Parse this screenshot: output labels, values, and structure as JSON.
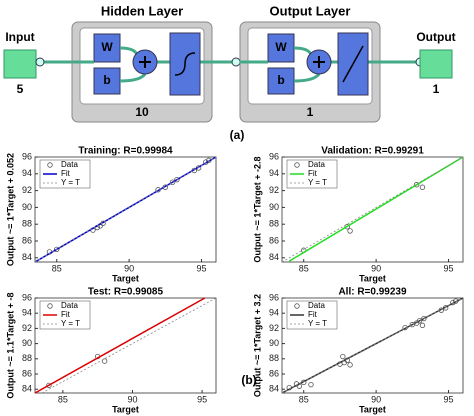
{
  "diagram": {
    "input": {
      "label": "Input",
      "size": "5"
    },
    "hidden": {
      "title": "Hidden Layer",
      "w": "W",
      "b": "b",
      "size": "10"
    },
    "output_layer": {
      "title": "Output Layer",
      "w": "W",
      "b": "b",
      "size": "1"
    },
    "output": {
      "label": "Output",
      "size": "1"
    },
    "caption": "(a)"
  },
  "caption_b": "(b)",
  "chart_data": [
    {
      "type": "scatter",
      "title": "Training: R=0.99984",
      "xlabel": "Target",
      "ylabel": "Output ~= 1*Target + 0.052",
      "xlim": [
        83.5,
        96
      ],
      "ylim": [
        83.5,
        96
      ],
      "xticks": [
        85,
        90,
        95
      ],
      "yticks": [
        84,
        86,
        88,
        90,
        92,
        94,
        96
      ],
      "legend": "upper left",
      "series": [
        {
          "name": "Data",
          "color": "#555555",
          "x": [
            84.5,
            85,
            87.5,
            87.8,
            88,
            88.2,
            92,
            92.5,
            93,
            93.3,
            94.5,
            94.8,
            95.3,
            95.5
          ],
          "values": [
            84.7,
            85,
            87.3,
            87.6,
            87.8,
            88.1,
            92.1,
            92.4,
            93,
            93.3,
            94.4,
            94.7,
            95.4,
            95.6
          ]
        },
        {
          "name": "Fit",
          "color": "#0000cc",
          "x": [
            83.5,
            96
          ],
          "values": [
            83.5,
            96
          ]
        },
        {
          "name": "Y = T",
          "color": "#888888",
          "x": [
            83.5,
            96
          ],
          "values": [
            83.5,
            96
          ]
        }
      ]
    },
    {
      "type": "scatter",
      "title": "Validation: R=0.99291",
      "xlabel": "Target",
      "ylabel": "Output ~= 1*Target + -2.8",
      "xlim": [
        83.5,
        96
      ],
      "ylim": [
        83.5,
        96
      ],
      "xticks": [
        85,
        90,
        95
      ],
      "yticks": [
        84,
        86,
        88,
        90,
        92,
        94,
        96
      ],
      "legend": "upper left",
      "series": [
        {
          "name": "Data",
          "color": "#555555",
          "x": [
            85,
            88,
            88.2,
            92.8,
            93.2
          ],
          "values": [
            84.9,
            87.7,
            87.2,
            92.7,
            92.4
          ]
        },
        {
          "name": "Fit",
          "color": "#22dd22",
          "x": [
            84,
            96
          ],
          "values": [
            83.6,
            96
          ]
        },
        {
          "name": "Y = T",
          "color": "#888888",
          "x": [
            83.5,
            96
          ],
          "values": [
            83.5,
            96
          ]
        }
      ]
    },
    {
      "type": "scatter",
      "title": "Test: R=0.99085",
      "xlabel": "Target",
      "ylabel": "Output ~= 1.1*Target + -8",
      "xlim": [
        83,
        96
      ],
      "ylim": [
        83.5,
        96
      ],
      "xticks": [
        85,
        90,
        95
      ],
      "yticks": [
        84,
        86,
        88,
        90,
        92,
        94,
        96
      ],
      "legend": "upper left",
      "series": [
        {
          "name": "Data",
          "color": "#555555",
          "x": [
            84,
            87.5,
            88
          ],
          "values": [
            84.5,
            88.3,
            87.7
          ]
        },
        {
          "name": "Fit",
          "color": "#dd0000",
          "x": [
            83,
            95.2
          ],
          "values": [
            83.5,
            96
          ]
        },
        {
          "name": "Y = T",
          "color": "#888888",
          "x": [
            83.5,
            96
          ],
          "values": [
            83.5,
            96
          ]
        }
      ]
    },
    {
      "type": "scatter",
      "title": "All: R=0.99239",
      "xlabel": "Target",
      "ylabel": "Output ~= 1*Target + 3.2",
      "xlim": [
        83.5,
        96
      ],
      "ylim": [
        83.5,
        96
      ],
      "xticks": [
        85,
        90,
        95
      ],
      "yticks": [
        84,
        86,
        88,
        90,
        92,
        94,
        96
      ],
      "legend": "upper left",
      "series": [
        {
          "name": "Data",
          "color": "#555555",
          "x": [
            84,
            84.5,
            84.7,
            85,
            85.5,
            87.5,
            87.7,
            87.8,
            88,
            88.2,
            92,
            92.5,
            92.8,
            93,
            93.2,
            93.3,
            94.5,
            94.8,
            95.3,
            95.5
          ],
          "values": [
            84.2,
            84.7,
            84.4,
            84.9,
            84.6,
            87.3,
            88.3,
            87.5,
            87.8,
            87.2,
            92.1,
            92.5,
            92.7,
            93,
            92.4,
            93.3,
            94.4,
            94.7,
            95.4,
            95.6
          ]
        },
        {
          "name": "Fit",
          "color": "#333333",
          "x": [
            83.5,
            96
          ],
          "values": [
            83.5,
            96
          ]
        },
        {
          "name": "Y = T",
          "color": "#888888",
          "x": [
            83.5,
            96
          ],
          "values": [
            83.5,
            96
          ]
        }
      ]
    }
  ]
}
